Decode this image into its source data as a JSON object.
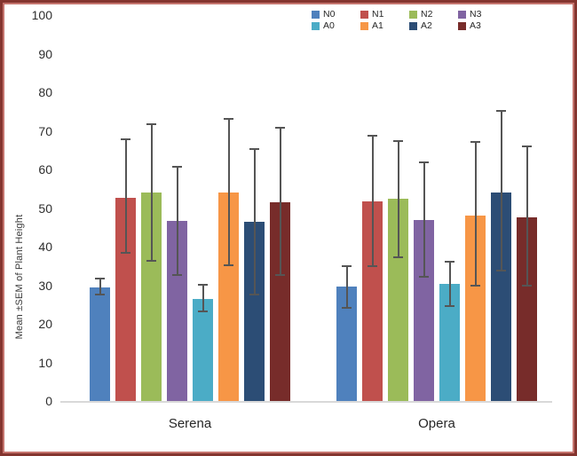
{
  "frame": {
    "outer_border_color": "#84352F",
    "inner_border_color": "#C5746E",
    "background": "#FFFFFF"
  },
  "chart_data": {
    "type": "bar",
    "title": "",
    "xlabel": "",
    "ylabel": "Mean ±SEM of Plant Height",
    "ylim": [
      0,
      100
    ],
    "yticks": [
      0,
      10,
      20,
      30,
      40,
      50,
      60,
      70,
      80,
      90,
      100
    ],
    "grid": false,
    "legend_position": "top-center",
    "legend_rows": 2,
    "categories": [
      "Serena",
      "Opera"
    ],
    "series": [
      {
        "name": "N0",
        "color": "#4F81BD",
        "values": [
          29.5,
          29.6
        ],
        "err_hi": [
          32.0,
          35.2
        ],
        "err_lo": [
          27.3,
          24.0
        ]
      },
      {
        "name": "N1",
        "color": "#C0504D",
        "values": [
          52.7,
          51.8
        ],
        "err_hi": [
          68.0,
          69.0
        ],
        "err_lo": [
          38.2,
          34.7
        ]
      },
      {
        "name": "N2",
        "color": "#9BBB59",
        "values": [
          54.0,
          52.3
        ],
        "err_hi": [
          72.0,
          67.7
        ],
        "err_lo": [
          36.2,
          37.1
        ]
      },
      {
        "name": "N3",
        "color": "#8064A2",
        "values": [
          46.7,
          46.8
        ],
        "err_hi": [
          61.0,
          62.0
        ],
        "err_lo": [
          32.5,
          32.0
        ]
      },
      {
        "name": "A0",
        "color": "#4BACC6",
        "values": [
          26.5,
          30.3
        ],
        "err_hi": [
          30.3,
          36.3
        ],
        "err_lo": [
          23.0,
          24.4
        ]
      },
      {
        "name": "A1",
        "color": "#F79646",
        "values": [
          54.0,
          48.1
        ],
        "err_hi": [
          73.4,
          67.4
        ],
        "err_lo": [
          35.0,
          29.6
        ]
      },
      {
        "name": "A2",
        "color": "#2C4D75",
        "values": [
          46.4,
          54.1
        ],
        "err_hi": [
          65.6,
          75.4
        ],
        "err_lo": [
          27.4,
          33.6
        ]
      },
      {
        "name": "A3",
        "color": "#772C2A",
        "values": [
          51.4,
          47.5
        ],
        "err_hi": [
          71.0,
          66.2
        ],
        "err_lo": [
          32.4,
          29.6
        ]
      }
    ],
    "error_bar_color": "#555555",
    "axis_line_color": "#D9D9D9",
    "text_color": "#2E2E2E"
  }
}
